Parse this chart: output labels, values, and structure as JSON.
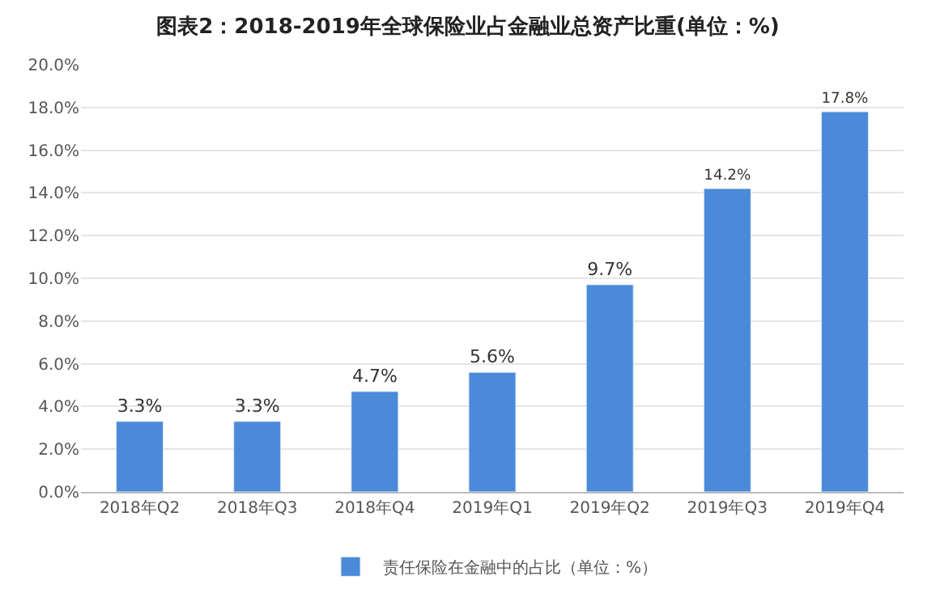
{
  "chart_data": {
    "type": "bar",
    "title": "图表2：2018-2019年全球保险业占金融业总资产比重(单位：%)",
    "categories": [
      "2018年Q2",
      "2018年Q3",
      "2018年Q4",
      "2019年Q1",
      "2019年Q2",
      "2019年Q3",
      "2019年Q4"
    ],
    "series": [
      {
        "name": "责任保险在金融中的占比（单位：%）",
        "color": "#4a8ad8",
        "values": [
          3.3,
          3.3,
          4.7,
          5.6,
          9.7,
          14.2,
          17.8
        ],
        "value_labels": [
          "3.3%",
          "3.3%",
          "4.7%",
          "5.6%",
          "9.7%",
          "14.2%",
          "17.8%"
        ]
      }
    ],
    "ylim": [
      0,
      20
    ],
    "yticks": [
      {
        "value": 0,
        "label": "0.0%"
      },
      {
        "value": 2,
        "label": "2.0%"
      },
      {
        "value": 4,
        "label": "4.0%"
      },
      {
        "value": 6,
        "label": "6.0%"
      },
      {
        "value": 8,
        "label": "8.0%"
      },
      {
        "value": 10,
        "label": "10.0%"
      },
      {
        "value": 12,
        "label": "12.0%"
      },
      {
        "value": 14,
        "label": "14.0%"
      },
      {
        "value": 16,
        "label": "16.0%"
      },
      {
        "value": 18,
        "label": "18.0%"
      },
      {
        "value": 20,
        "label": "20.0%"
      }
    ],
    "grid": "y",
    "legend": "bottom"
  }
}
